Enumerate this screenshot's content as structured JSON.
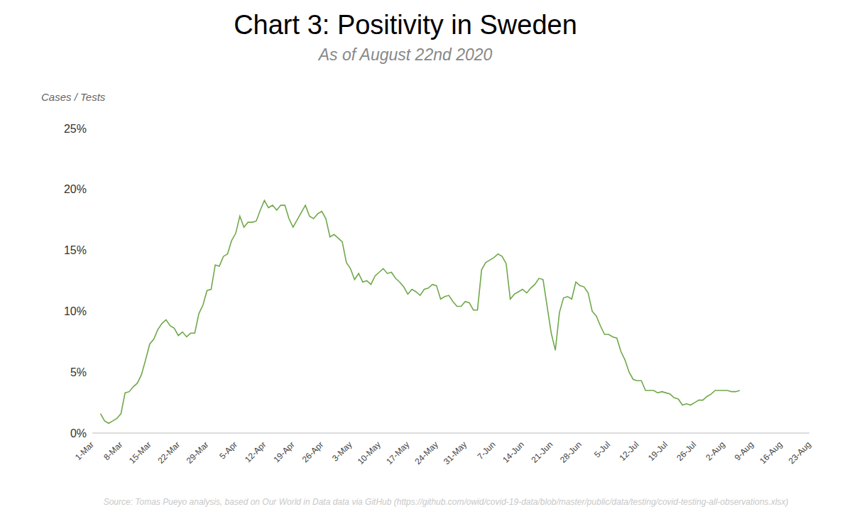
{
  "chart_data": {
    "type": "line",
    "title": "Chart 3: Positivity in Sweden",
    "subtitle": "As of August 22nd 2020",
    "y_label": "Cases / Tests",
    "source": "Source: Tomas Pueyo analysis, based on Our World in Data data via GitHub (https://github.com/owid/covid-19-data/blob/master/public/data/testing/covid-testing-all-observations.xlsx)",
    "color": "#70a84b",
    "grid": false,
    "ylim": [
      0,
      25
    ],
    "yticks": [
      {
        "value": 0,
        "label": "0%"
      },
      {
        "value": 5,
        "label": "5%"
      },
      {
        "value": 10,
        "label": "10%"
      },
      {
        "value": 15,
        "label": "15%"
      },
      {
        "value": 20,
        "label": "20%"
      },
      {
        "value": 25,
        "label": "25%"
      }
    ],
    "categories": [
      "1-Mar",
      null,
      null,
      null,
      null,
      null,
      null,
      "8-Mar",
      null,
      null,
      null,
      null,
      null,
      null,
      "15-Mar",
      null,
      null,
      null,
      null,
      null,
      null,
      "22-Mar",
      null,
      null,
      null,
      null,
      null,
      null,
      "29-Mar",
      null,
      null,
      null,
      null,
      null,
      null,
      "5-Apr",
      null,
      null,
      null,
      null,
      null,
      null,
      "12-Apr",
      null,
      null,
      null,
      null,
      null,
      null,
      "19-Apr",
      null,
      null,
      null,
      null,
      null,
      null,
      "26-Apr",
      null,
      null,
      null,
      null,
      null,
      null,
      "3-May",
      null,
      null,
      null,
      null,
      null,
      null,
      "10-May",
      null,
      null,
      null,
      null,
      null,
      null,
      "17-May",
      null,
      null,
      null,
      null,
      null,
      null,
      "24-May",
      null,
      null,
      null,
      null,
      null,
      null,
      "31-May",
      null,
      null,
      null,
      null,
      null,
      null,
      "7-Jun",
      null,
      null,
      null,
      null,
      null,
      null,
      "14-Jun",
      null,
      null,
      null,
      null,
      null,
      null,
      "21-Jun",
      null,
      null,
      null,
      null,
      null,
      null,
      "28-Jun",
      null,
      null,
      null,
      null,
      null,
      null,
      "5-Jul",
      null,
      null,
      null,
      null,
      null,
      null,
      "12-Jul",
      null,
      null,
      null,
      null,
      null,
      null,
      "19-Jul",
      null,
      null,
      null,
      null,
      null,
      null,
      "26-Jul",
      null,
      null,
      null,
      null,
      null,
      null,
      "2-Aug",
      null,
      null,
      null,
      null,
      null,
      null,
      "9-Aug",
      null,
      null,
      null,
      null,
      null,
      null,
      "16-Aug",
      null,
      null,
      null,
      null,
      null,
      null,
      "23-Aug"
    ],
    "values": [
      null,
      null,
      1.6,
      1.0,
      0.8,
      1.0,
      1.2,
      1.6,
      3.3,
      3.4,
      3.8,
      4.1,
      4.8,
      6.0,
      7.3,
      7.7,
      8.5,
      9.0,
      9.3,
      8.8,
      8.6,
      8.0,
      8.3,
      7.9,
      8.2,
      8.2,
      9.8,
      10.5,
      11.7,
      11.8,
      13.8,
      13.7,
      14.5,
      14.7,
      15.8,
      16.4,
      17.8,
      16.9,
      17.3,
      17.3,
      17.4,
      18.3,
      19.1,
      18.5,
      18.7,
      18.3,
      18.7,
      18.7,
      17.6,
      16.9,
      17.5,
      18.1,
      18.7,
      17.8,
      17.6,
      18.0,
      18.2,
      17.6,
      16.1,
      16.3,
      16.0,
      15.7,
      14.0,
      13.5,
      12.6,
      13.1,
      12.4,
      12.5,
      12.2,
      12.9,
      13.2,
      13.5,
      13.1,
      13.2,
      12.7,
      12.4,
      12.0,
      11.4,
      11.8,
      11.6,
      11.3,
      11.8,
      11.9,
      12.2,
      12.1,
      11.0,
      11.2,
      11.3,
      10.8,
      10.4,
      10.4,
      10.8,
      10.7,
      10.1,
      10.1,
      13.4,
      14.0,
      14.2,
      14.4,
      14.7,
      14.5,
      13.9,
      11.0,
      11.4,
      11.6,
      11.8,
      11.5,
      11.9,
      12.2,
      12.7,
      12.6,
      10.4,
      8.2,
      6.8,
      9.9,
      11.1,
      11.2,
      11.0,
      12.4,
      12.1,
      12.0,
      11.5,
      10.0,
      9.6,
      8.8,
      8.1,
      8.1,
      7.9,
      7.8,
      6.7,
      6.0,
      5.0,
      4.4,
      4.3,
      4.3,
      3.5,
      3.5,
      3.5,
      3.3,
      3.4,
      3.3,
      3.2,
      2.9,
      2.8,
      2.3,
      2.4,
      2.3,
      2.5,
      2.7,
      2.7,
      3.0,
      3.2,
      3.5,
      3.5,
      3.5,
      3.5,
      3.4,
      3.4,
      3.5,
      null,
      null,
      null,
      null,
      null,
      null,
      null,
      null,
      null,
      null,
      null,
      null,
      null,
      null,
      null,
      null,
      null
    ]
  }
}
